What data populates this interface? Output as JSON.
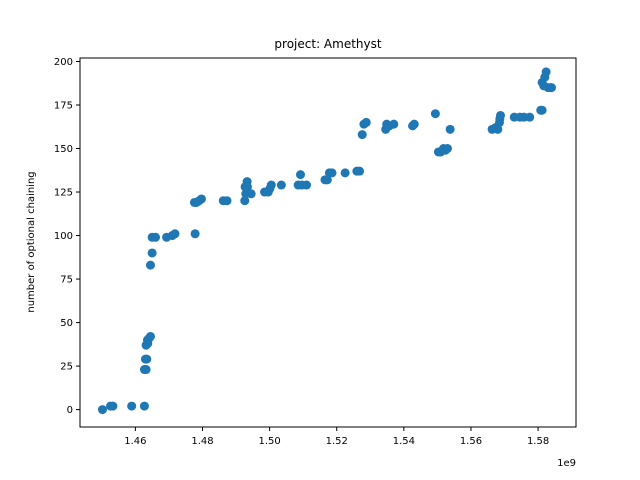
{
  "chart_data": {
    "type": "scatter",
    "title": "project: Amethyst",
    "xlabel": "",
    "ylabel": "number of optional chaining",
    "x_offset_label": "1e9",
    "xlim": [
      1.4435,
      1.5913
    ],
    "ylim": [
      -10,
      202
    ],
    "xticks": [
      1.46,
      1.48,
      1.5,
      1.52,
      1.54,
      1.56,
      1.58
    ],
    "xtick_labels": [
      "1.46",
      "1.48",
      "1.50",
      "1.52",
      "1.54",
      "1.56",
      "1.58"
    ],
    "yticks": [
      0,
      25,
      50,
      75,
      100,
      125,
      150,
      175,
      200
    ],
    "ytick_labels": [
      "0",
      "25",
      "50",
      "75",
      "100",
      "125",
      "150",
      "175",
      "200"
    ],
    "grid": false,
    "marker_color": "#1f77b4",
    "points": [
      [
        1.4502,
        0
      ],
      [
        1.4526,
        2
      ],
      [
        1.4533,
        2
      ],
      [
        1.4589,
        2
      ],
      [
        1.4627,
        2
      ],
      [
        1.4627,
        23
      ],
      [
        1.4632,
        23
      ],
      [
        1.463,
        29
      ],
      [
        1.4634,
        29
      ],
      [
        1.4632,
        37
      ],
      [
        1.4637,
        38
      ],
      [
        1.4636,
        40
      ],
      [
        1.4641,
        41
      ],
      [
        1.4645,
        42
      ],
      [
        1.4645,
        83
      ],
      [
        1.465,
        90
      ],
      [
        1.465,
        99
      ],
      [
        1.466,
        99
      ],
      [
        1.4693,
        99
      ],
      [
        1.471,
        100
      ],
      [
        1.4718,
        101
      ],
      [
        1.4778,
        101
      ],
      [
        1.4776,
        119
      ],
      [
        1.4782,
        119
      ],
      [
        1.479,
        120
      ],
      [
        1.4797,
        121
      ],
      [
        1.4862,
        120
      ],
      [
        1.4873,
        120
      ],
      [
        1.4926,
        120
      ],
      [
        1.4929,
        124
      ],
      [
        1.4927,
        128
      ],
      [
        1.4933,
        131
      ],
      [
        1.4934,
        128
      ],
      [
        1.4945,
        124
      ],
      [
        1.4985,
        125
      ],
      [
        1.4996,
        125
      ],
      [
        1.5001,
        127
      ],
      [
        1.5005,
        129
      ],
      [
        1.5035,
        129
      ],
      [
        1.5085,
        129
      ],
      [
        1.5092,
        135
      ],
      [
        1.5096,
        129
      ],
      [
        1.511,
        129
      ],
      [
        1.5165,
        132
      ],
      [
        1.5172,
        132
      ],
      [
        1.5178,
        136
      ],
      [
        1.5186,
        136
      ],
      [
        1.5225,
        136
      ],
      [
        1.526,
        137
      ],
      [
        1.5268,
        137
      ],
      [
        1.5276,
        158
      ],
      [
        1.5281,
        164
      ],
      [
        1.5288,
        165
      ],
      [
        1.5346,
        161
      ],
      [
        1.5349,
        164
      ],
      [
        1.5357,
        163
      ],
      [
        1.537,
        164
      ],
      [
        1.5426,
        163
      ],
      [
        1.5431,
        164
      ],
      [
        1.5494,
        170
      ],
      [
        1.5503,
        148
      ],
      [
        1.551,
        148
      ],
      [
        1.5518,
        150
      ],
      [
        1.5524,
        149
      ],
      [
        1.553,
        150
      ],
      [
        1.5538,
        161
      ],
      [
        1.5663,
        161
      ],
      [
        1.5673,
        162
      ],
      [
        1.568,
        161
      ],
      [
        1.5685,
        165
      ],
      [
        1.5686,
        167
      ],
      [
        1.5688,
        169
      ],
      [
        1.5729,
        168
      ],
      [
        1.5746,
        168
      ],
      [
        1.5758,
        168
      ],
      [
        1.5775,
        168
      ],
      [
        1.5808,
        172
      ],
      [
        1.5812,
        172
      ],
      [
        1.5812,
        188
      ],
      [
        1.5817,
        186
      ],
      [
        1.582,
        191
      ],
      [
        1.5824,
        194
      ],
      [
        1.583,
        185
      ],
      [
        1.5838,
        185
      ],
      [
        1.584,
        185
      ]
    ]
  }
}
